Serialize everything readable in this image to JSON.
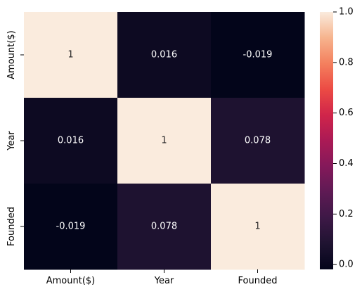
{
  "chart_data": {
    "type": "heatmap",
    "title": "",
    "xlabel": "",
    "ylabel": "",
    "rows": [
      "Amount($)",
      "Year",
      "Founded"
    ],
    "cols": [
      "Amount($)",
      "Year",
      "Founded"
    ],
    "values": [
      [
        1,
        0.016,
        -0.019
      ],
      [
        0.016,
        1,
        0.078
      ],
      [
        -0.019,
        0.078,
        1
      ]
    ],
    "annotations": [
      [
        "1",
        "0.016",
        "-0.019"
      ],
      [
        "0.016",
        "1",
        "0.078"
      ],
      [
        "-0.019",
        "0.078",
        "1"
      ]
    ],
    "colorbar": {
      "vmin": -0.019,
      "vmax": 1,
      "ticks": [
        0.0,
        0.2,
        0.4,
        0.6,
        0.8,
        1.0
      ],
      "tick_labels": [
        "0.0",
        "0.2",
        "0.4",
        "0.6",
        "0.8",
        "1.0"
      ],
      "colormap": "rocket"
    },
    "colors": {
      "low": "#03051a",
      "high": "#faebdd",
      "text_on_dark": "#ffffff",
      "text_on_light": "#262626"
    }
  }
}
